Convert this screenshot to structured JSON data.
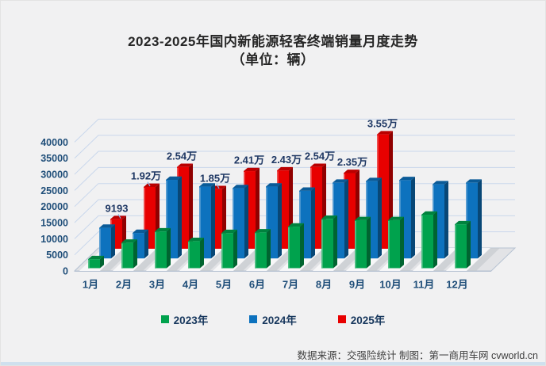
{
  "title": {
    "line1": "2023-2025年国内新能源轻客终端销量月度走势",
    "line2": "（单位：辆）"
  },
  "chart_data": {
    "type": "bar",
    "subtype": "3d-column",
    "title": "2023-2025年国内新能源轻客终端销量月度走势",
    "unit": "辆",
    "categories": [
      "1月",
      "2月",
      "3月",
      "4月",
      "5月",
      "6月",
      "7月",
      "8月",
      "9月",
      "10月",
      "11月",
      "12月"
    ],
    "series": [
      {
        "name": "2023年",
        "color": "#00A24D",
        "values": [
          2800,
          7900,
          11400,
          8400,
          10900,
          11100,
          12900,
          15300,
          14900,
          14900,
          16600,
          13600
        ],
        "labels": null
      },
      {
        "name": "2024年",
        "color": "#0D72BE",
        "values": [
          9500,
          7900,
          24400,
          22300,
          21800,
          22300,
          21000,
          23500,
          24000,
          24300,
          23000,
          23500
        ],
        "labels": null
      },
      {
        "name": "2025年",
        "color": "#E80000",
        "values": [
          9193,
          19200,
          25400,
          18500,
          24100,
          24300,
          25400,
          23500,
          35500,
          null,
          null,
          null
        ],
        "labels": [
          "9193",
          "1.92万",
          "2.54万",
          "1.85万",
          "2.41万",
          "2.43万",
          "2.54万",
          "2.35万",
          "3.55万",
          null,
          null,
          null
        ]
      }
    ],
    "ylim": [
      0,
      40000
    ],
    "yticks": [
      "0",
      "5000",
      "10000",
      "15000",
      "20000",
      "25000",
      "30000",
      "35000",
      "40000"
    ],
    "grid": true,
    "legend_position": "bottom"
  },
  "source_note": "数据来源：交强险统计 制图：第一商用车网 cvworld.cn",
  "colors": {
    "axis_text": "#1F4E79",
    "data_label_text": "#1F3864",
    "gridline": "#C9D7EC",
    "leader_line": "#8EB4E3",
    "title_text": "#262626",
    "source_text": "#404040",
    "floor_tile": "#F8F9FA",
    "floor_shadow": "#C3C6CB",
    "background": "#F1F1F2"
  }
}
